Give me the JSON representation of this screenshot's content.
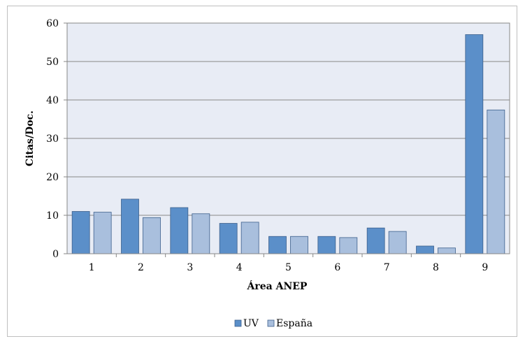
{
  "chart_data": {
    "type": "bar",
    "title": "",
    "xlabel": "Área ANEP",
    "ylabel": "Citas/Doc.",
    "categories": [
      "1",
      "2",
      "3",
      "4",
      "5",
      "6",
      "7",
      "8",
      "9"
    ],
    "series": [
      {
        "name": "UV",
        "values": [
          11.0,
          14.2,
          12.0,
          7.9,
          4.5,
          4.5,
          6.7,
          2.0,
          57.0
        ],
        "color": "#5b8fc9"
      },
      {
        "name": "España",
        "values": [
          10.8,
          9.4,
          10.4,
          8.2,
          4.5,
          4.2,
          5.8,
          1.5,
          37.4
        ],
        "color": "#a9bfdd"
      }
    ],
    "ylim": [
      0,
      60
    ],
    "yticks": [
      "0",
      "10",
      "20",
      "30",
      "40",
      "50",
      "60"
    ],
    "grid": true,
    "plot_background": "#e8ecf5",
    "legend_position": "bottom"
  }
}
